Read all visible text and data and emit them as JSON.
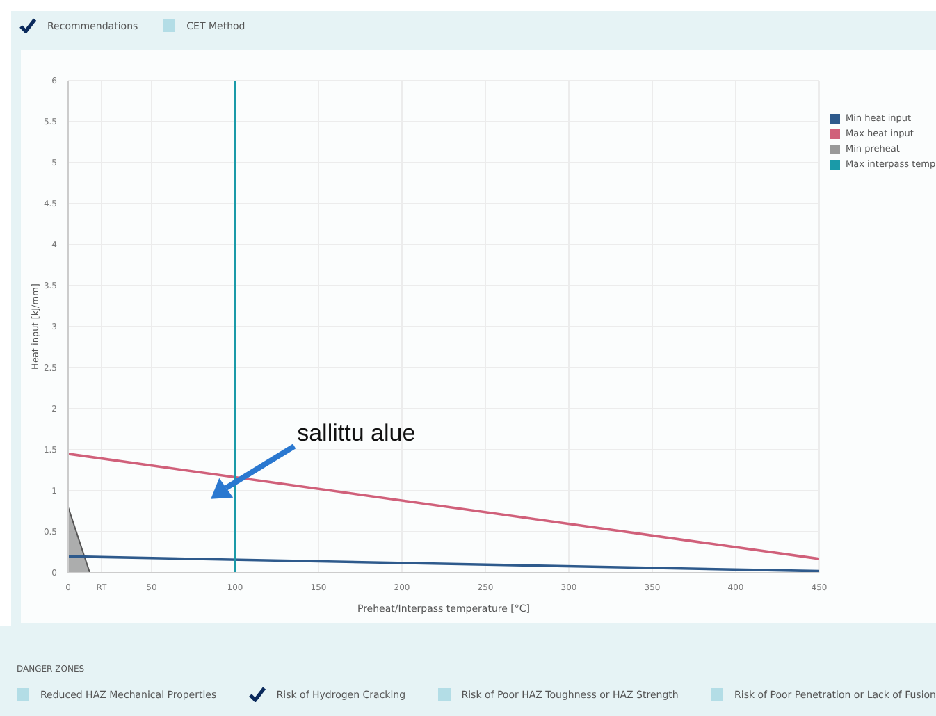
{
  "chart_data": {
    "type": "line",
    "xlabel": "Preheat/Interpass temperature [°C]",
    "ylabel": "Heat input [kJ/mm]",
    "xlim": [
      0,
      450
    ],
    "ylim": [
      0,
      6
    ],
    "xticks": [
      0,
      {
        "value": 20,
        "label": "RT"
      },
      50,
      100,
      150,
      200,
      250,
      300,
      350,
      400,
      450
    ],
    "yticks": [
      0,
      0.5,
      1,
      1.5,
      2,
      2.5,
      3,
      3.5,
      4,
      4.5,
      5,
      5.5,
      6
    ],
    "grid": true,
    "legend": "top right",
    "marker": "none",
    "series": [
      {
        "name": "Min heat input",
        "color": "#2e5a8c",
        "x": [
          0,
          450
        ],
        "values": [
          0.2,
          0.02
        ]
      },
      {
        "name": "Max heat input",
        "color": "#d0607a",
        "x": [
          0,
          450
        ],
        "values": [
          1.45,
          0.17
        ]
      },
      {
        "name": "Min preheat",
        "type": "area",
        "color": "#999999",
        "x": [
          0,
          13
        ],
        "values": [
          0.8,
          0
        ]
      },
      {
        "name": "Max interpass temp",
        "color": "#1a9aa8",
        "x": [
          100,
          100
        ],
        "values": [
          0,
          6
        ]
      }
    ],
    "annotations": [
      "sallittu alue",
      "Recommendations",
      "CET Method",
      "DANGER ZONES",
      "Reduced HAZ Mechanical Properties",
      "Risk of Hydrogen Cracking",
      "Risk of Poor HAZ Toughness or HAZ Strength",
      "Risk of Poor Penetration or Lack of Fusion"
    ]
  }
}
